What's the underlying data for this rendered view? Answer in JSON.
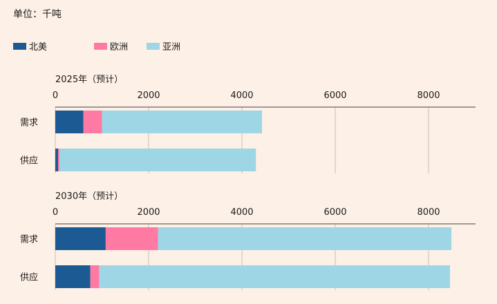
{
  "chart_data": {
    "type": "bar",
    "orientation": "horizontal",
    "stacked": true,
    "unit_label": "单位：千吨",
    "legend_position": "top-left",
    "legend": [
      {
        "name": "北美",
        "color": "#1c5a93"
      },
      {
        "name": "欧洲",
        "color": "#ff7aa3"
      },
      {
        "name": "亚洲",
        "color": "#9fd6e6"
      }
    ],
    "xlim": [
      0,
      9000
    ],
    "xticks": [
      0,
      2000,
      4000,
      6000,
      8000
    ],
    "grid": true,
    "panels": [
      {
        "title": "2025年（预计）",
        "categories": [
          "需求",
          "供应"
        ],
        "series": [
          {
            "name": "北美",
            "values": [
              600,
              60
            ]
          },
          {
            "name": "欧洲",
            "values": [
              400,
              30
            ]
          },
          {
            "name": "亚洲",
            "values": [
              3430,
              4210
            ]
          }
        ]
      },
      {
        "title": "2030年（预计）",
        "categories": [
          "需求",
          "供应"
        ],
        "series": [
          {
            "name": "北美",
            "values": [
              1080,
              750
            ]
          },
          {
            "name": "欧洲",
            "values": [
              1120,
              190
            ]
          },
          {
            "name": "亚洲",
            "values": [
              6290,
              7520
            ]
          }
        ]
      }
    ]
  }
}
